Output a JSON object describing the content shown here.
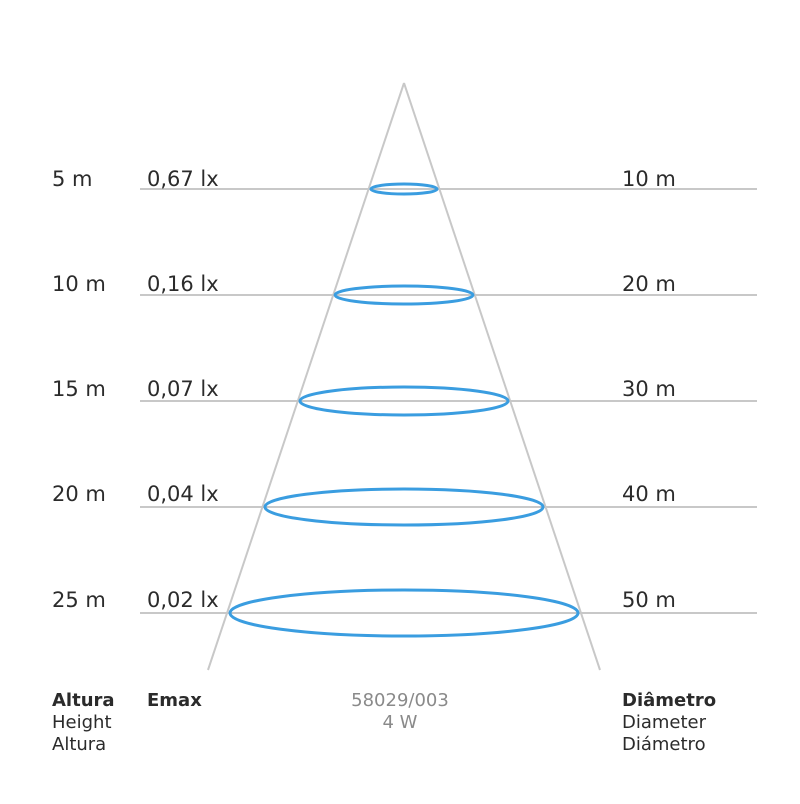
{
  "rows": [
    {
      "height": "5 m",
      "emax": "0,67 lx",
      "diameter": "10 m"
    },
    {
      "height": "10 m",
      "emax": "0,16 lx",
      "diameter": "20 m"
    },
    {
      "height": "15 m",
      "emax": "0,07 lx",
      "diameter": "30 m"
    },
    {
      "height": "20 m",
      "emax": "0,04 lx",
      "diameter": "40 m"
    },
    {
      "height": "25 m",
      "emax": "0,02 lx",
      "diameter": "50 m"
    }
  ],
  "legend": {
    "height": [
      "Altura",
      "Height",
      "Altura"
    ],
    "emax": "Emax",
    "diameter": [
      "Diâmetro",
      "Diameter",
      "Diámetro"
    ]
  },
  "product": {
    "code": "58029/003",
    "power": "4 W"
  },
  "colors": {
    "beam_ring": "#3a9de0",
    "line": "#c8c8c8",
    "text": "#2b2b2b",
    "caption": "#8a8a8a"
  }
}
